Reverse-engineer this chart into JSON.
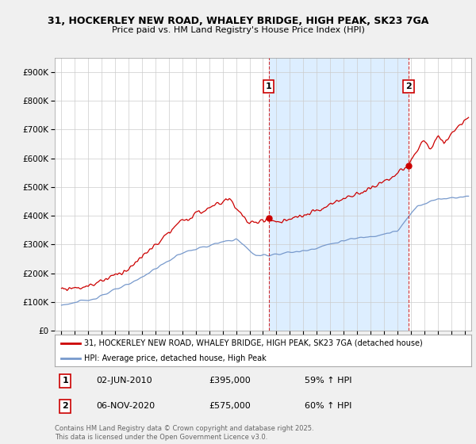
{
  "title_line1": "31, HOCKERLEY NEW ROAD, WHALEY BRIDGE, HIGH PEAK, SK23 7GA",
  "title_line2": "Price paid vs. HM Land Registry's House Price Index (HPI)",
  "background_color": "#f0f0f0",
  "plot_bg_color": "#ffffff",
  "shade_color": "#ddeeff",
  "grid_color": "#cccccc",
  "red_color": "#cc0000",
  "blue_color": "#7799cc",
  "marker1_x": 2010.42,
  "marker2_x": 2020.84,
  "marker1_date": "02-JUN-2010",
  "marker1_price": "£395,000",
  "marker1_hpi": "59% ↑ HPI",
  "marker2_date": "06-NOV-2020",
  "marker2_price": "£575,000",
  "marker2_hpi": "60% ↑ HPI",
  "legend_label1": "31, HOCKERLEY NEW ROAD, WHALEY BRIDGE, HIGH PEAK, SK23 7GA (detached house)",
  "legend_label2": "HPI: Average price, detached house, High Peak",
  "footer": "Contains HM Land Registry data © Crown copyright and database right 2025.\nThis data is licensed under the Open Government Licence v3.0.",
  "ylim_max": 950000,
  "xmin": 1994.5,
  "xmax": 2025.5
}
